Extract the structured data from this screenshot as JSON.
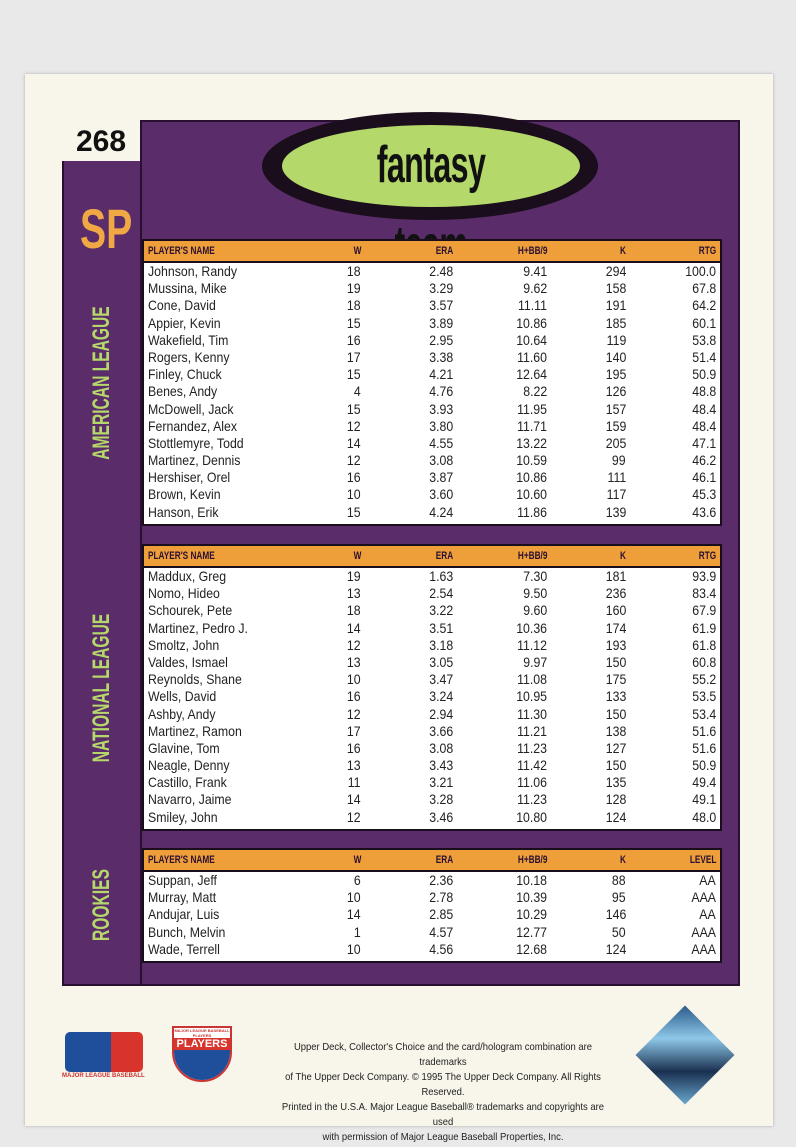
{
  "card": {
    "number": "268",
    "title": "fantasy team",
    "position": "SP"
  },
  "sections": [
    {
      "label": "AMERICAN LEAGUE",
      "headers": [
        "PLAYER'S NAME",
        "W",
        "ERA",
        "H+BB/9",
        "K",
        "RTG"
      ],
      "rows": [
        [
          "Johnson, Randy",
          "18",
          "2.48",
          "9.41",
          "294",
          "100.0"
        ],
        [
          "Mussina, Mike",
          "19",
          "3.29",
          "9.62",
          "158",
          "67.8"
        ],
        [
          "Cone, David",
          "18",
          "3.57",
          "11.11",
          "191",
          "64.2"
        ],
        [
          "Appier, Kevin",
          "15",
          "3.89",
          "10.86",
          "185",
          "60.1"
        ],
        [
          "Wakefield, Tim",
          "16",
          "2.95",
          "10.64",
          "119",
          "53.8"
        ],
        [
          "Rogers, Kenny",
          "17",
          "3.38",
          "11.60",
          "140",
          "51.4"
        ],
        [
          "Finley, Chuck",
          "15",
          "4.21",
          "12.64",
          "195",
          "50.9"
        ],
        [
          "Benes, Andy",
          "4",
          "4.76",
          "8.22",
          "126",
          "48.8"
        ],
        [
          "McDowell, Jack",
          "15",
          "3.93",
          "11.95",
          "157",
          "48.4"
        ],
        [
          "Fernandez, Alex",
          "12",
          "3.80",
          "11.71",
          "159",
          "48.4"
        ],
        [
          "Stottlemyre, Todd",
          "14",
          "4.55",
          "13.22",
          "205",
          "47.1"
        ],
        [
          "Martinez, Dennis",
          "12",
          "3.08",
          "10.59",
          "99",
          "46.2"
        ],
        [
          "Hershiser, Orel",
          "16",
          "3.87",
          "10.86",
          "111",
          "46.1"
        ],
        [
          "Brown, Kevin",
          "10",
          "3.60",
          "10.60",
          "117",
          "45.3"
        ],
        [
          "Hanson, Erik",
          "15",
          "4.24",
          "11.86",
          "139",
          "43.6"
        ]
      ]
    },
    {
      "label": "NATIONAL LEAGUE",
      "headers": [
        "PLAYER'S NAME",
        "W",
        "ERA",
        "H+BB/9",
        "K",
        "RTG"
      ],
      "rows": [
        [
          "Maddux, Greg",
          "19",
          "1.63",
          "7.30",
          "181",
          "93.9"
        ],
        [
          "Nomo, Hideo",
          "13",
          "2.54",
          "9.50",
          "236",
          "83.4"
        ],
        [
          "Schourek, Pete",
          "18",
          "3.22",
          "9.60",
          "160",
          "67.9"
        ],
        [
          "Martinez, Pedro J.",
          "14",
          "3.51",
          "10.36",
          "174",
          "61.9"
        ],
        [
          "Smoltz, John",
          "12",
          "3.18",
          "11.12",
          "193",
          "61.8"
        ],
        [
          "Valdes, Ismael",
          "13",
          "3.05",
          "9.97",
          "150",
          "60.8"
        ],
        [
          "Reynolds, Shane",
          "10",
          "3.47",
          "11.08",
          "175",
          "55.2"
        ],
        [
          "Wells, David",
          "16",
          "3.24",
          "10.95",
          "133",
          "53.5"
        ],
        [
          "Ashby, Andy",
          "12",
          "2.94",
          "11.30",
          "150",
          "53.4"
        ],
        [
          "Martinez, Ramon",
          "17",
          "3.66",
          "11.21",
          "138",
          "51.6"
        ],
        [
          "Glavine, Tom",
          "16",
          "3.08",
          "11.23",
          "127",
          "51.6"
        ],
        [
          "Neagle, Denny",
          "13",
          "3.43",
          "11.42",
          "150",
          "50.9"
        ],
        [
          "Castillo, Frank",
          "11",
          "3.21",
          "11.06",
          "135",
          "49.4"
        ],
        [
          "Navarro, Jaime",
          "14",
          "3.28",
          "11.23",
          "128",
          "49.1"
        ],
        [
          "Smiley, John",
          "12",
          "3.46",
          "10.80",
          "124",
          "48.0"
        ]
      ]
    },
    {
      "label": "ROOKIES",
      "headers": [
        "PLAYER'S NAME",
        "W",
        "ERA",
        "H+BB/9",
        "K",
        "LEVEL"
      ],
      "rows": [
        [
          "Suppan, Jeff",
          "6",
          "2.36",
          "10.18",
          "88",
          "AA"
        ],
        [
          "Murray, Matt",
          "10",
          "2.78",
          "10.39",
          "95",
          "AAA"
        ],
        [
          "Andujar, Luis",
          "14",
          "2.85",
          "10.29",
          "146",
          "AA"
        ],
        [
          "Bunch, Melvin",
          "1",
          "4.57",
          "12.77",
          "50",
          "AAA"
        ],
        [
          "Wade, Terrell",
          "10",
          "4.56",
          "12.68",
          "124",
          "AAA"
        ]
      ]
    }
  ],
  "footer": {
    "legal": [
      "Upper Deck, Collector's Choice and the card/hologram combination are trademarks",
      "of The Upper Deck Company. © 1995 The Upper Deck Company. All Rights Reserved.",
      "Printed in the U.S.A. Major League Baseball® trademarks and copyrights are used",
      "with permission of Major League Baseball Properties, Inc."
    ],
    "mlb_logo": "MAJOR LEAGUE BASEBALL",
    "players_logo": "MAJOR LEAGUE BASEBALL PLAYERS",
    "players_word": "PLAYERS",
    "hologram": "UPPER DECK"
  },
  "colors": {
    "panel": "#5a2c6a",
    "header": "#ef9f3a",
    "accent_green": "#b5d86a",
    "accent_orange": "#f0a844",
    "card": "#f8f5ea"
  }
}
